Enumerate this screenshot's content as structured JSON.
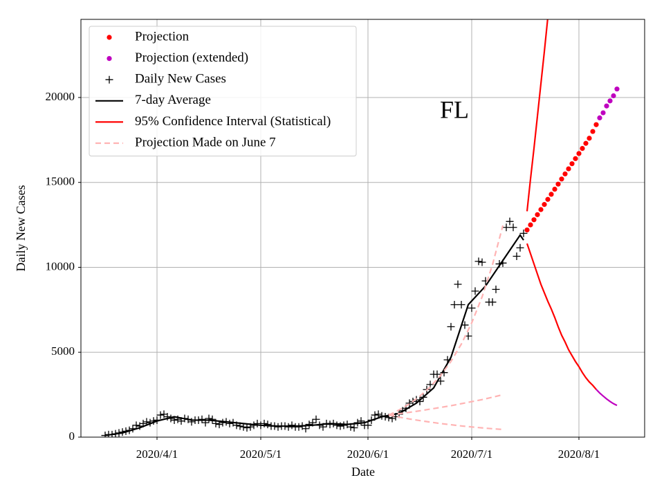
{
  "chart_data": {
    "type": "line",
    "title": "FL",
    "x_label": "Date",
    "y_label": "Daily New Cases",
    "xlim": [
      "2020/3/10",
      "2020/8/20"
    ],
    "ylim": [
      0,
      24600
    ],
    "xticks": [
      "2020/4/1",
      "2020/5/1",
      "2020/6/1",
      "2020/7/1",
      "2020/8/1"
    ],
    "yticks": [
      0,
      5000,
      10000,
      15000,
      20000
    ],
    "grid": true,
    "legend": "upper left",
    "series": [
      {
        "name": "Projection",
        "color": "#ff0000",
        "marker": "dot",
        "x": [
          "2020/7/17",
          "2020/7/18",
          "2020/7/19",
          "2020/7/20",
          "2020/7/21",
          "2020/7/22",
          "2020/7/23",
          "2020/7/24",
          "2020/7/25",
          "2020/7/26",
          "2020/7/27",
          "2020/7/28",
          "2020/7/29",
          "2020/7/30",
          "2020/7/31",
          "2020/8/1",
          "2020/8/2",
          "2020/8/3",
          "2020/8/4",
          "2020/8/5",
          "2020/8/6"
        ],
        "values": [
          12200,
          12500,
          12800,
          13100,
          13400,
          13700,
          14000,
          14300,
          14600,
          14900,
          15200,
          15500,
          15800,
          16100,
          16400,
          16700,
          17000,
          17300,
          17600,
          18000,
          18400
        ]
      },
      {
        "name": "Projection (extended)",
        "color": "#bf00bf",
        "marker": "dot",
        "x": [
          "2020/8/7",
          "2020/8/8",
          "2020/8/9",
          "2020/8/10",
          "2020/8/11",
          "2020/8/12"
        ],
        "values": [
          18800,
          19100,
          19500,
          19800,
          20100,
          20500
        ]
      },
      {
        "name": "Daily New Cases",
        "color": "#000000",
        "marker": "plus",
        "x": [
          "2020/3/17",
          "2020/3/18",
          "2020/3/19",
          "2020/3/20",
          "2020/3/21",
          "2020/3/22",
          "2020/3/23",
          "2020/3/24",
          "2020/3/25",
          "2020/3/26",
          "2020/3/27",
          "2020/3/28",
          "2020/3/29",
          "2020/3/30",
          "2020/3/31",
          "2020/4/1",
          "2020/4/2",
          "2020/4/3",
          "2020/4/4",
          "2020/4/5",
          "2020/4/6",
          "2020/4/7",
          "2020/4/8",
          "2020/4/9",
          "2020/4/10",
          "2020/4/11",
          "2020/4/12",
          "2020/4/13",
          "2020/4/14",
          "2020/4/15",
          "2020/4/16",
          "2020/4/17",
          "2020/4/18",
          "2020/4/19",
          "2020/4/20",
          "2020/4/21",
          "2020/4/22",
          "2020/4/23",
          "2020/4/24",
          "2020/4/25",
          "2020/4/26",
          "2020/4/27",
          "2020/4/28",
          "2020/4/29",
          "2020/4/30",
          "2020/5/1",
          "2020/5/2",
          "2020/5/3",
          "2020/5/4",
          "2020/5/5",
          "2020/5/6",
          "2020/5/7",
          "2020/5/8",
          "2020/5/9",
          "2020/5/10",
          "2020/5/11",
          "2020/5/12",
          "2020/5/13",
          "2020/5/14",
          "2020/5/15",
          "2020/5/16",
          "2020/5/17",
          "2020/5/18",
          "2020/5/19",
          "2020/5/20",
          "2020/5/21",
          "2020/5/22",
          "2020/5/23",
          "2020/5/24",
          "2020/5/25",
          "2020/5/26",
          "2020/5/27",
          "2020/5/28",
          "2020/5/29",
          "2020/5/30",
          "2020/5/31",
          "2020/6/1",
          "2020/6/2",
          "2020/6/3",
          "2020/6/4",
          "2020/6/5",
          "2020/6/6",
          "2020/6/7",
          "2020/6/8",
          "2020/6/9",
          "2020/6/10",
          "2020/6/11",
          "2020/6/12",
          "2020/6/13",
          "2020/6/14",
          "2020/6/15",
          "2020/6/16",
          "2020/6/17",
          "2020/6/18",
          "2020/6/19",
          "2020/6/20",
          "2020/6/21",
          "2020/6/22",
          "2020/6/23",
          "2020/6/24",
          "2020/6/25",
          "2020/6/26",
          "2020/6/27",
          "2020/6/28",
          "2020/6/29",
          "2020/6/30",
          "2020/7/1",
          "2020/7/2",
          "2020/7/3",
          "2020/7/4",
          "2020/7/5",
          "2020/7/6",
          "2020/7/7",
          "2020/7/8",
          "2020/7/9",
          "2020/7/10",
          "2020/7/11",
          "2020/7/12",
          "2020/7/13",
          "2020/7/14",
          "2020/7/15",
          "2020/7/16"
        ],
        "values": [
          100,
          150,
          150,
          200,
          250,
          300,
          350,
          400,
          500,
          700,
          650,
          800,
          900,
          850,
          950,
          1000,
          1300,
          1350,
          1200,
          1100,
          1000,
          1050,
          950,
          1100,
          1050,
          900,
          1000,
          1000,
          1050,
          850,
          1100,
          1050,
          800,
          750,
          850,
          900,
          800,
          850,
          700,
          650,
          600,
          550,
          600,
          700,
          800,
          700,
          800,
          750,
          650,
          650,
          600,
          650,
          650,
          600,
          700,
          600,
          600,
          650,
          500,
          750,
          850,
          1050,
          700,
          600,
          800,
          750,
          800,
          700,
          650,
          700,
          750,
          600,
          550,
          850,
          950,
          700,
          700,
          1000,
          1300,
          1350,
          1250,
          1200,
          1150,
          1100,
          1200,
          1350,
          1550,
          1700,
          2000,
          2100,
          2200,
          2100,
          2350,
          2800,
          3100,
          3700,
          3700,
          3300,
          3800,
          4550,
          6500,
          7800,
          9000,
          7800,
          6600,
          5950,
          7600,
          8600,
          10350,
          10300,
          9200,
          7950,
          7950,
          8700,
          10200,
          10250,
          12350,
          12700,
          12350,
          10650,
          11150,
          12000
        ]
      },
      {
        "name": "7-day Average",
        "color": "#000000",
        "line": "solid",
        "x": [
          "2020/3/17",
          "2020/3/22",
          "2020/3/27",
          "2020/4/1",
          "2020/4/6",
          "2020/4/11",
          "2020/4/16",
          "2020/4/21",
          "2020/4/26",
          "2020/5/1",
          "2020/5/6",
          "2020/5/11",
          "2020/5/16",
          "2020/5/21",
          "2020/5/26",
          "2020/5/31",
          "2020/6/5",
          "2020/6/10",
          "2020/6/15",
          "2020/6/20",
          "2020/6/25",
          "2020/6/30",
          "2020/7/5",
          "2020/7/10",
          "2020/7/15",
          "2020/7/16"
        ],
        "values": [
          100,
          250,
          550,
          950,
          1200,
          1000,
          1000,
          900,
          800,
          700,
          650,
          650,
          700,
          800,
          750,
          850,
          1200,
          1400,
          2000,
          2900,
          4700,
          7800,
          8900,
          10400,
          11900,
          11600
        ]
      },
      {
        "name": "95% Confidence Interval (Statistical)",
        "color": "#ff0000",
        "line": "solid",
        "lines": [
          {
            "x": [
              "2020/7/17",
              "2020/7/18",
              "2020/7/19",
              "2020/7/20",
              "2020/7/21",
              "2020/7/22",
              "2020/7/23"
            ],
            "values": [
              13300,
              15200,
              17000,
              18900,
              20800,
              22700,
              24700
            ]
          },
          {
            "x": [
              "2020/7/17",
              "2020/7/18",
              "2020/7/19",
              "2020/7/20",
              "2020/7/21",
              "2020/7/22",
              "2020/7/23",
              "2020/7/24",
              "2020/7/25",
              "2020/7/26",
              "2020/7/27",
              "2020/7/28",
              "2020/7/29",
              "2020/7/30",
              "2020/7/31",
              "2020/8/1",
              "2020/8/2",
              "2020/8/3",
              "2020/8/4",
              "2020/8/5",
              "2020/8/6"
            ],
            "values": [
              11400,
              10800,
              10200,
              9600,
              9000,
              8500,
              8000,
              7550,
              7050,
              6500,
              6000,
              5600,
              5150,
              4800,
              4450,
              4150,
              3800,
              3500,
              3250,
              3050,
              2810
            ]
          }
        ]
      },
      {
        "name": "Projection Made on June 7",
        "color": "#ffb3b3",
        "line": "dashed",
        "lines": [
          {
            "x": [
              "2020/6/7",
              "2020/6/10",
              "2020/6/13",
              "2020/6/16",
              "2020/6/19",
              "2020/6/22",
              "2020/6/25",
              "2020/6/28",
              "2020/7/1",
              "2020/7/4",
              "2020/7/7",
              "2020/7/10"
            ],
            "values": [
              1300,
              1600,
              1960,
              2410,
              2960,
              3630,
              4460,
              5480,
              6730,
              8260,
              10150,
              12460
            ]
          },
          {
            "x": [
              "2020/6/7",
              "2020/6/10",
              "2020/6/13",
              "2020/6/16",
              "2020/6/19",
              "2020/6/22",
              "2020/6/25",
              "2020/6/28",
              "2020/7/1",
              "2020/7/4",
              "2020/7/7",
              "2020/7/10"
            ],
            "values": [
              1300,
              1380,
              1460,
              1550,
              1650,
              1750,
              1850,
              1970,
              2090,
              2210,
              2350,
              2500
            ]
          },
          {
            "x": [
              "2020/6/7",
              "2020/6/10",
              "2020/6/13",
              "2020/6/16",
              "2020/6/19",
              "2020/6/22",
              "2020/6/25",
              "2020/6/28",
              "2020/7/1",
              "2020/7/4",
              "2020/7/7",
              "2020/7/10"
            ],
            "values": [
              1300,
              1180,
              1070,
              975,
              885,
              800,
              730,
              660,
              600,
              545,
              495,
              450
            ]
          }
        ]
      },
      {
        "color": "#bf00bf",
        "line": "solid",
        "x": [
          "2020/8/6",
          "2020/8/7",
          "2020/8/8",
          "2020/8/9",
          "2020/8/10",
          "2020/8/11",
          "2020/8/12"
        ],
        "values": [
          2810,
          2600,
          2420,
          2250,
          2100,
          1970,
          1870
        ]
      }
    ]
  }
}
